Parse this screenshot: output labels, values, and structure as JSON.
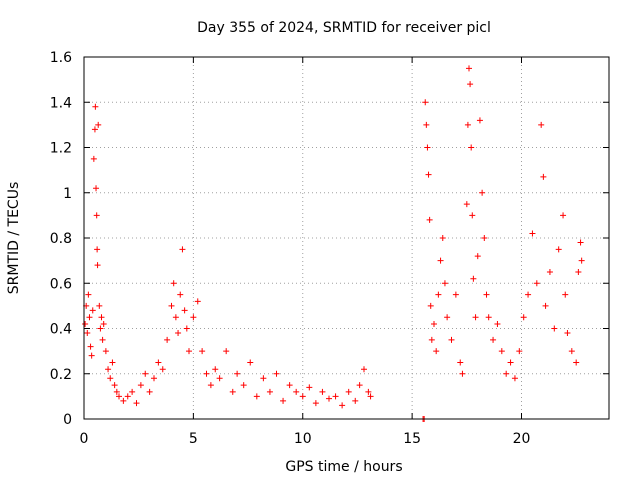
{
  "chart_data": {
    "type": "scatter",
    "title": "Day 355 of 2024, SRMTID for receiver picl",
    "xlabel": "GPS time / hours",
    "ylabel": "SRMTID / TECUs",
    "xlim": [
      0,
      24
    ],
    "ylim": [
      0,
      1.6
    ],
    "xticks": [
      0,
      5,
      10,
      15,
      20
    ],
    "xtick_labels": [
      "0",
      "5",
      "10",
      "15",
      "20"
    ],
    "yticks": [
      0,
      0.2,
      0.4,
      0.6,
      0.8,
      1,
      1.2,
      1.4,
      1.6
    ],
    "ytick_labels": [
      "0",
      "0.2",
      "0.4",
      "0.6",
      "0.8",
      "1",
      "1.2",
      "1.4",
      "1.6"
    ],
    "grid": true,
    "marker": "+",
    "color": "#ff0000",
    "series": [
      {
        "name": "SRMTID",
        "points": [
          [
            0.05,
            0.42
          ],
          [
            0.1,
            0.5
          ],
          [
            0.15,
            0.38
          ],
          [
            0.2,
            0.55
          ],
          [
            0.25,
            0.45
          ],
          [
            0.3,
            0.32
          ],
          [
            0.35,
            0.28
          ],
          [
            0.4,
            0.48
          ],
          [
            0.45,
            1.15
          ],
          [
            0.5,
            1.28
          ],
          [
            0.52,
            1.38
          ],
          [
            0.55,
            1.02
          ],
          [
            0.58,
            0.9
          ],
          [
            0.6,
            0.75
          ],
          [
            0.62,
            0.68
          ],
          [
            0.65,
            1.3
          ],
          [
            0.7,
            0.5
          ],
          [
            0.75,
            0.4
          ],
          [
            0.8,
            0.45
          ],
          [
            0.85,
            0.35
          ],
          [
            0.9,
            0.42
          ],
          [
            1.0,
            0.3
          ],
          [
            1.1,
            0.22
          ],
          [
            1.2,
            0.18
          ],
          [
            1.3,
            0.25
          ],
          [
            1.4,
            0.15
          ],
          [
            1.5,
            0.12
          ],
          [
            1.6,
            0.1
          ],
          [
            1.8,
            0.08
          ],
          [
            2.0,
            0.1
          ],
          [
            2.2,
            0.12
          ],
          [
            2.4,
            0.07
          ],
          [
            2.6,
            0.15
          ],
          [
            2.8,
            0.2
          ],
          [
            3.0,
            0.12
          ],
          [
            3.2,
            0.18
          ],
          [
            3.4,
            0.25
          ],
          [
            3.6,
            0.22
          ],
          [
            3.8,
            0.35
          ],
          [
            4.0,
            0.5
          ],
          [
            4.1,
            0.6
          ],
          [
            4.2,
            0.45
          ],
          [
            4.3,
            0.38
          ],
          [
            4.4,
            0.55
          ],
          [
            4.5,
            0.75
          ],
          [
            4.6,
            0.48
          ],
          [
            4.7,
            0.4
          ],
          [
            4.8,
            0.3
          ],
          [
            5.0,
            0.45
          ],
          [
            5.2,
            0.52
          ],
          [
            5.4,
            0.3
          ],
          [
            5.6,
            0.2
          ],
          [
            5.8,
            0.15
          ],
          [
            6.0,
            0.22
          ],
          [
            6.2,
            0.18
          ],
          [
            6.5,
            0.3
          ],
          [
            6.8,
            0.12
          ],
          [
            7.0,
            0.2
          ],
          [
            7.3,
            0.15
          ],
          [
            7.6,
            0.25
          ],
          [
            7.9,
            0.1
          ],
          [
            8.2,
            0.18
          ],
          [
            8.5,
            0.12
          ],
          [
            8.8,
            0.2
          ],
          [
            9.1,
            0.08
          ],
          [
            9.4,
            0.15
          ],
          [
            9.7,
            0.12
          ],
          [
            10.0,
            0.1
          ],
          [
            10.3,
            0.14
          ],
          [
            10.6,
            0.07
          ],
          [
            10.9,
            0.12
          ],
          [
            11.2,
            0.09
          ],
          [
            11.5,
            0.1
          ],
          [
            11.8,
            0.06
          ],
          [
            12.1,
            0.12
          ],
          [
            12.4,
            0.08
          ],
          [
            12.6,
            0.15
          ],
          [
            12.8,
            0.22
          ],
          [
            13.0,
            0.12
          ],
          [
            13.1,
            0.1
          ],
          [
            15.5,
            0.0
          ],
          [
            15.55,
            0.0
          ],
          [
            15.6,
            1.4
          ],
          [
            15.65,
            1.3
          ],
          [
            15.7,
            1.2
          ],
          [
            15.75,
            1.08
          ],
          [
            15.8,
            0.88
          ],
          [
            15.85,
            0.5
          ],
          [
            15.9,
            0.35
          ],
          [
            16.0,
            0.42
          ],
          [
            16.1,
            0.3
          ],
          [
            16.2,
            0.55
          ],
          [
            16.3,
            0.7
          ],
          [
            16.4,
            0.8
          ],
          [
            16.5,
            0.6
          ],
          [
            16.6,
            0.45
          ],
          [
            16.8,
            0.35
          ],
          [
            17.0,
            0.55
          ],
          [
            17.2,
            0.25
          ],
          [
            17.3,
            0.2
          ],
          [
            17.5,
            0.95
          ],
          [
            17.55,
            1.3
          ],
          [
            17.6,
            1.55
          ],
          [
            17.65,
            1.48
          ],
          [
            17.7,
            1.2
          ],
          [
            17.75,
            0.9
          ],
          [
            17.8,
            0.62
          ],
          [
            17.9,
            0.45
          ],
          [
            18.0,
            0.72
          ],
          [
            18.1,
            1.32
          ],
          [
            18.2,
            1.0
          ],
          [
            18.3,
            0.8
          ],
          [
            18.4,
            0.55
          ],
          [
            18.5,
            0.45
          ],
          [
            18.7,
            0.35
          ],
          [
            18.9,
            0.42
          ],
          [
            19.1,
            0.3
          ],
          [
            19.3,
            0.2
          ],
          [
            19.5,
            0.25
          ],
          [
            19.7,
            0.18
          ],
          [
            19.9,
            0.3
          ],
          [
            20.1,
            0.45
          ],
          [
            20.3,
            0.55
          ],
          [
            20.5,
            0.82
          ],
          [
            20.7,
            0.6
          ],
          [
            20.9,
            1.3
          ],
          [
            21.0,
            1.07
          ],
          [
            21.1,
            0.5
          ],
          [
            21.3,
            0.65
          ],
          [
            21.5,
            0.4
          ],
          [
            21.7,
            0.75
          ],
          [
            21.9,
            0.9
          ],
          [
            22.0,
            0.55
          ],
          [
            22.1,
            0.38
          ],
          [
            22.3,
            0.3
          ],
          [
            22.5,
            0.25
          ],
          [
            22.6,
            0.65
          ],
          [
            22.7,
            0.78
          ],
          [
            22.75,
            0.7
          ]
        ]
      }
    ]
  }
}
